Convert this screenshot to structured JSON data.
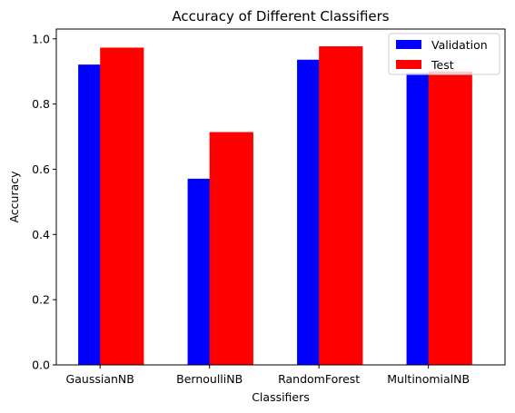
{
  "chart_data": {
    "type": "bar",
    "title": "Accuracy of Different Classifiers",
    "xlabel": "Classifiers",
    "ylabel": "Accuracy",
    "categories": [
      "GaussianNB",
      "BernoulliNB",
      "RandomForest",
      "MultinomialNB"
    ],
    "series": [
      {
        "name": "Validation",
        "color": "#0000ff",
        "values": [
          0.921,
          0.571,
          0.936,
          0.895
        ]
      },
      {
        "name": "Test",
        "color": "#ff0000",
        "values": [
          0.973,
          0.714,
          0.977,
          0.9
        ]
      }
    ],
    "ylim": [
      0,
      1.03
    ],
    "yticks": [
      0.0,
      0.2,
      0.4,
      0.6,
      0.8,
      1.0
    ],
    "ytick_labels": [
      "0.0",
      "0.2",
      "0.4",
      "0.6",
      "0.8",
      "1.0"
    ],
    "grid": false,
    "legend_position": "top-right"
  }
}
